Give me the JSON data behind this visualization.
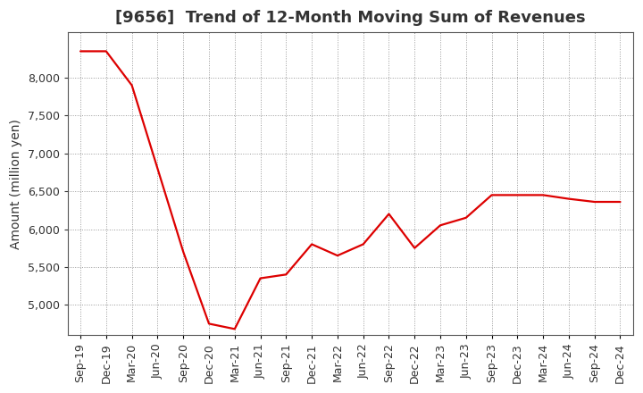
{
  "title": "[9656]  Trend of 12-Month Moving Sum of Revenues",
  "ylabel": "Amount (million yen)",
  "line_color": "#dd0000",
  "background_color": "#ffffff",
  "plot_bg_color": "#ffffff",
  "grid_color": "#999999",
  "title_color": "#333333",
  "x_labels": [
    "Sep-19",
    "Dec-19",
    "Mar-20",
    "Jun-20",
    "Sep-20",
    "Dec-20",
    "Mar-21",
    "Jun-21",
    "Sep-21",
    "Dec-21",
    "Mar-22",
    "Jun-22",
    "Sep-22",
    "Dec-22",
    "Mar-23",
    "Jun-23",
    "Sep-23",
    "Dec-23",
    "Mar-24",
    "Jun-24",
    "Sep-24",
    "Dec-24"
  ],
  "values": [
    8350,
    8350,
    7900,
    6800,
    5700,
    4750,
    4680,
    5350,
    5400,
    5800,
    5650,
    5800,
    6200,
    5750,
    6050,
    6150,
    6450,
    6450,
    6450,
    6400,
    6360,
    6360
  ],
  "ylim": [
    4600,
    8600
  ],
  "yticks": [
    5000,
    5500,
    6000,
    6500,
    7000,
    7500,
    8000
  ],
  "title_fontsize": 13,
  "axis_fontsize": 10,
  "tick_fontsize": 9
}
